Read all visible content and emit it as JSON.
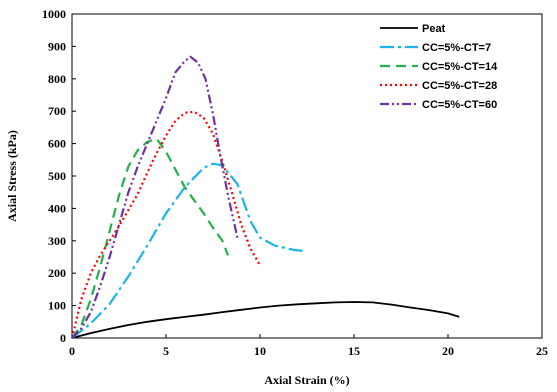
{
  "chart_data": {
    "type": "line",
    "title": "",
    "xlabel": "Axial Strain (%)",
    "ylabel": "Axial Stress (kPa)",
    "xlim": [
      0,
      25
    ],
    "ylim": [
      0,
      1000
    ],
    "x_ticks": [
      0,
      5,
      10,
      15,
      20,
      25
    ],
    "y_ticks": [
      0,
      100,
      200,
      300,
      400,
      500,
      600,
      700,
      800,
      900,
      1000
    ],
    "grid": false,
    "legend_position": "top-right",
    "series": [
      {
        "name": "Peat",
        "color": "#000000",
        "dash": "solid",
        "points": [
          [
            0,
            0
          ],
          [
            1,
            15
          ],
          [
            2,
            28
          ],
          [
            3,
            40
          ],
          [
            4,
            50
          ],
          [
            5,
            58
          ],
          [
            6,
            65
          ],
          [
            7,
            72
          ],
          [
            8,
            80
          ],
          [
            9,
            87
          ],
          [
            10,
            94
          ],
          [
            11,
            100
          ],
          [
            12,
            104
          ],
          [
            13,
            107
          ],
          [
            14,
            110
          ],
          [
            15,
            111
          ],
          [
            16,
            110
          ],
          [
            17,
            103
          ],
          [
            18,
            94
          ],
          [
            19,
            86
          ],
          [
            20,
            76
          ],
          [
            20.6,
            65
          ]
        ]
      },
      {
        "name": "CC=5%-CT=7",
        "color": "#1EB4EA",
        "dash": "dashdot",
        "points": [
          [
            0,
            0
          ],
          [
            1,
            45
          ],
          [
            2,
            105
          ],
          [
            3,
            190
          ],
          [
            4,
            285
          ],
          [
            5,
            385
          ],
          [
            6,
            465
          ],
          [
            7,
            525
          ],
          [
            7.5,
            538
          ],
          [
            8,
            533
          ],
          [
            8.8,
            475
          ],
          [
            9.5,
            360
          ],
          [
            10,
            310
          ],
          [
            10.8,
            285
          ],
          [
            11.8,
            272
          ],
          [
            12.4,
            268
          ]
        ]
      },
      {
        "name": "CC=5%-CT=14",
        "color": "#22B14C",
        "dash": "dashed",
        "points": [
          [
            0,
            0
          ],
          [
            0.5,
            40
          ],
          [
            1,
            120
          ],
          [
            1.5,
            220
          ],
          [
            2,
            330
          ],
          [
            2.5,
            440
          ],
          [
            3,
            530
          ],
          [
            3.5,
            580
          ],
          [
            4,
            605
          ],
          [
            4.5,
            615
          ],
          [
            5,
            575
          ],
          [
            5.5,
            520
          ],
          [
            6,
            465
          ],
          [
            6.5,
            425
          ],
          [
            7,
            385
          ],
          [
            7.5,
            340
          ],
          [
            8,
            300
          ],
          [
            8.3,
            255
          ]
        ]
      },
      {
        "name": "CC=5%-CT=28",
        "color": "#FF0000",
        "dash": "dotted",
        "points": [
          [
            0,
            0
          ],
          [
            0.5,
            120
          ],
          [
            1,
            200
          ],
          [
            1.5,
            255
          ],
          [
            2,
            300
          ],
          [
            2.5,
            345
          ],
          [
            3,
            395
          ],
          [
            3.5,
            445
          ],
          [
            4,
            510
          ],
          [
            4.5,
            570
          ],
          [
            5,
            625
          ],
          [
            5.5,
            670
          ],
          [
            6,
            695
          ],
          [
            6.5,
            698
          ],
          [
            7,
            680
          ],
          [
            7.5,
            630
          ],
          [
            8,
            545
          ],
          [
            8.5,
            450
          ],
          [
            9,
            350
          ],
          [
            9.5,
            275
          ],
          [
            10,
            225
          ]
        ]
      },
      {
        "name": "CC=5%-CT=60",
        "color": "#7030A0",
        "dash": "dashdotdot",
        "points": [
          [
            0,
            0
          ],
          [
            0.5,
            30
          ],
          [
            1,
            80
          ],
          [
            1.5,
            160
          ],
          [
            2,
            250
          ],
          [
            2.5,
            350
          ],
          [
            3,
            450
          ],
          [
            3.5,
            530
          ],
          [
            4,
            600
          ],
          [
            4.5,
            670
          ],
          [
            5,
            740
          ],
          [
            5.5,
            820
          ],
          [
            6,
            855
          ],
          [
            6.3,
            868
          ],
          [
            6.7,
            850
          ],
          [
            7.1,
            800
          ],
          [
            7.5,
            690
          ],
          [
            7.9,
            560
          ],
          [
            8.3,
            440
          ],
          [
            8.8,
            310
          ]
        ]
      }
    ]
  }
}
